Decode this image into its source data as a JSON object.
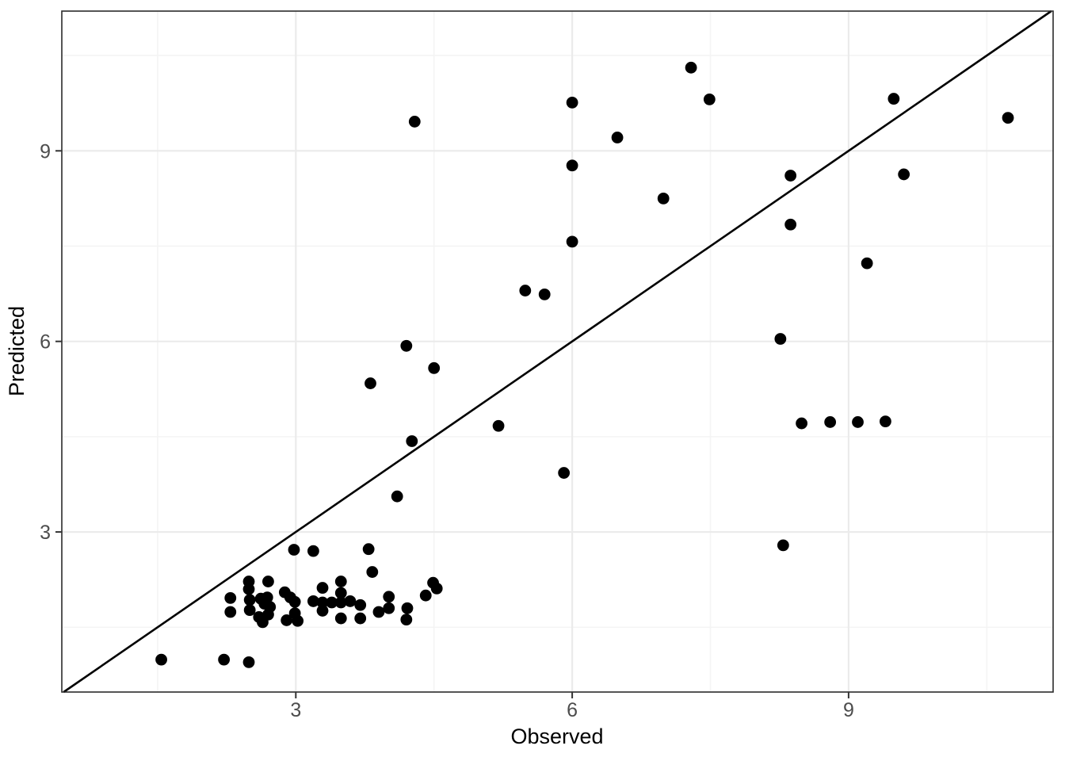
{
  "chart_data": {
    "type": "scatter",
    "title": "",
    "xlabel": "Observed",
    "ylabel": "Predicted",
    "xlim": [
      0.46,
      11.22
    ],
    "ylim": [
      0.48,
      11.2
    ],
    "x_major_ticks": [
      3,
      6,
      9
    ],
    "y_major_ticks": [
      3,
      6,
      9
    ],
    "x_minor_gridlines": [
      1.5,
      4.5,
      7.5,
      10.5
    ],
    "y_minor_gridlines": [
      1.5,
      4.5,
      7.5,
      10.5
    ],
    "grid": "on",
    "legend": "none",
    "reference_line": {
      "type": "identity",
      "slope": 1,
      "intercept": 0
    },
    "colors": {
      "point": "#000000",
      "reference_line": "#000000",
      "grid_major": "#ebebeb",
      "grid_minor": "#f4f4f4",
      "panel_border": "#2b2b2b",
      "tick_mark": "#333333",
      "tick_label": "#4d4d4d",
      "axis_title": "#000000",
      "background": "#ffffff"
    },
    "point_radius_px": 7.4,
    "points": [
      [
        1.54,
        0.99
      ],
      [
        2.22,
        0.99
      ],
      [
        2.49,
        0.95
      ],
      [
        2.29,
        1.96
      ],
      [
        2.29,
        1.74
      ],
      [
        2.49,
        2.22
      ],
      [
        2.49,
        2.1
      ],
      [
        2.5,
        1.93
      ],
      [
        2.5,
        1.77
      ],
      [
        2.6,
        1.66
      ],
      [
        2.62,
        1.95
      ],
      [
        2.64,
        1.58
      ],
      [
        2.66,
        1.87
      ],
      [
        2.69,
        1.97
      ],
      [
        2.7,
        2.22
      ],
      [
        2.7,
        1.7
      ],
      [
        2.72,
        1.82
      ],
      [
        2.88,
        2.05
      ],
      [
        2.9,
        1.61
      ],
      [
        2.94,
        1.97
      ],
      [
        2.98,
        2.72
      ],
      [
        2.99,
        1.9
      ],
      [
        2.99,
        1.72
      ],
      [
        3.02,
        1.6
      ],
      [
        3.19,
        2.7
      ],
      [
        3.19,
        1.91
      ],
      [
        3.29,
        2.12
      ],
      [
        3.29,
        1.89
      ],
      [
        3.29,
        1.76
      ],
      [
        3.39,
        1.89
      ],
      [
        3.49,
        2.22
      ],
      [
        3.49,
        2.04
      ],
      [
        3.49,
        1.89
      ],
      [
        3.49,
        1.64
      ],
      [
        3.59,
        1.91
      ],
      [
        3.7,
        1.85
      ],
      [
        3.7,
        1.64
      ],
      [
        3.79,
        2.73
      ],
      [
        3.83,
        2.37
      ],
      [
        3.9,
        1.74
      ],
      [
        4.01,
        1.98
      ],
      [
        4.01,
        1.8
      ],
      [
        4.2,
        1.62
      ],
      [
        4.21,
        1.8
      ],
      [
        4.41,
        2.0
      ],
      [
        4.49,
        2.2
      ],
      [
        4.53,
        2.11
      ],
      [
        3.81,
        5.34
      ],
      [
        4.1,
        3.56
      ],
      [
        4.2,
        5.93
      ],
      [
        4.26,
        4.43
      ],
      [
        4.29,
        9.46
      ],
      [
        4.5,
        5.58
      ],
      [
        5.2,
        4.67
      ],
      [
        5.49,
        6.8
      ],
      [
        5.7,
        6.74
      ],
      [
        5.91,
        3.93
      ],
      [
        6.0,
        9.76
      ],
      [
        6.0,
        8.77
      ],
      [
        6.0,
        7.57
      ],
      [
        6.49,
        9.21
      ],
      [
        6.99,
        8.25
      ],
      [
        7.29,
        10.31
      ],
      [
        7.49,
        9.81
      ],
      [
        8.26,
        6.04
      ],
      [
        8.29,
        2.79
      ],
      [
        8.37,
        8.61
      ],
      [
        8.37,
        7.84
      ],
      [
        8.49,
        4.71
      ],
      [
        8.8,
        4.73
      ],
      [
        9.1,
        4.73
      ],
      [
        9.4,
        4.74
      ],
      [
        9.2,
        7.23
      ],
      [
        9.49,
        9.82
      ],
      [
        9.6,
        8.63
      ],
      [
        10.73,
        9.52
      ]
    ]
  }
}
